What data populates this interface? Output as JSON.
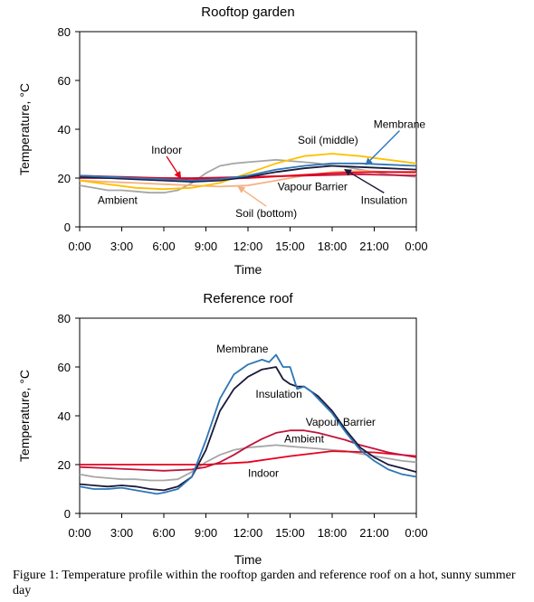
{
  "caption": "Figure 1: Temperature profile within the rooftop garden and reference roof on a hot, sunny summer day",
  "colors": {
    "ambient": "#a6a6a6",
    "indoor": "#e8001c",
    "membrane": "#2e75b6",
    "insulation": "#1a1a3a",
    "vapour_barrier": "#c0143c",
    "soil_middle": "#ffc000",
    "soil_bottom": "#f4b183"
  },
  "chart_data": [
    {
      "type": "line",
      "title": "Rooftop garden",
      "xlabel": "Time",
      "ylabel": "Temperature, °C",
      "x_ticks": [
        "0:00",
        "3:00",
        "6:00",
        "9:00",
        "12:00",
        "15:00",
        "18:00",
        "21:00",
        "0:00"
      ],
      "y_ticks": [
        0,
        20,
        40,
        60,
        80
      ],
      "xlim": [
        0,
        24
      ],
      "ylim": [
        0,
        80
      ],
      "grid": false,
      "series": [
        {
          "name": "Ambient",
          "color_key": "ambient",
          "x": [
            0,
            1,
            2,
            3,
            4,
            5,
            6,
            7,
            8,
            9,
            10,
            11,
            12,
            13,
            14,
            15,
            16,
            17,
            18,
            19,
            20,
            21,
            22,
            23,
            24
          ],
          "y": [
            17,
            16,
            15,
            15,
            14.5,
            14,
            14,
            15,
            18,
            22,
            25,
            26,
            26.5,
            27,
            27.5,
            27,
            26.5,
            26,
            25,
            24.5,
            23.5,
            22.5,
            21.5,
            21,
            20.5
          ]
        },
        {
          "name": "Soil (bottom)",
          "color_key": "soil_bottom",
          "x": [
            0,
            2,
            4,
            6,
            8,
            10,
            12,
            14,
            16,
            18,
            20,
            22,
            24
          ],
          "y": [
            19,
            18.5,
            18,
            17.5,
            17,
            16.5,
            17,
            19,
            21,
            22.5,
            23,
            22.5,
            22
          ]
        },
        {
          "name": "Soil (middle)",
          "color_key": "soil_middle",
          "x": [
            0,
            2,
            4,
            6,
            8,
            10,
            12,
            14,
            16,
            18,
            20,
            22,
            24
          ],
          "y": [
            19,
            17.5,
            16,
            15.5,
            16,
            18,
            22,
            26,
            29,
            30,
            29,
            27.5,
            26
          ]
        },
        {
          "name": "Vapour Barrier",
          "color_key": "vapour_barrier",
          "x": [
            0,
            4,
            8,
            12,
            16,
            20,
            24
          ],
          "y": [
            20,
            20,
            20,
            20.5,
            21,
            21.5,
            21
          ]
        },
        {
          "name": "Indoor",
          "color_key": "indoor",
          "x": [
            0,
            3,
            6,
            9,
            12,
            15,
            18,
            21,
            24
          ],
          "y": [
            21,
            20.5,
            20,
            19.5,
            20,
            21,
            22,
            22.5,
            22.5
          ]
        },
        {
          "name": "Insulation",
          "color_key": "insulation",
          "x": [
            0,
            2,
            4,
            6,
            8,
            10,
            12,
            14,
            16,
            18,
            20,
            22,
            24
          ],
          "y": [
            20.5,
            20,
            19.5,
            19,
            18.5,
            19,
            20.5,
            22.5,
            24,
            25,
            24.5,
            24,
            23.5
          ]
        },
        {
          "name": "Membrane",
          "color_key": "membrane",
          "x": [
            0,
            2,
            4,
            6,
            8,
            10,
            12,
            14,
            16,
            18,
            20,
            22,
            24
          ],
          "y": [
            21,
            20.5,
            20,
            19.5,
            19,
            19.5,
            21,
            23.5,
            25,
            26,
            26,
            25.5,
            25
          ]
        }
      ],
      "annotations": [
        {
          "text": "Indoor",
          "x": 6.2,
          "y": 30,
          "anchor": "middle",
          "target": [
            7.2,
            20
          ]
        },
        {
          "text": "Soil (middle)",
          "x": 17.7,
          "y": 34,
          "anchor": "middle"
        },
        {
          "text": "Membrane",
          "x": 22.8,
          "y": 40.5,
          "anchor": "middle",
          "target": [
            20.4,
            25.5
          ]
        },
        {
          "text": "Ambient",
          "x": 2.7,
          "y": 9.5,
          "anchor": "middle"
        },
        {
          "text": "Vapour Barrier",
          "x": 16.6,
          "y": 15,
          "anchor": "middle"
        },
        {
          "text": "Insulation",
          "x": 21.7,
          "y": 9.5,
          "anchor": "middle",
          "target": [
            18.9,
            23.5
          ]
        },
        {
          "text": "Soil (bottom)",
          "x": 13.3,
          "y": 4,
          "anchor": "middle",
          "target": [
            11.3,
            16.5
          ]
        }
      ]
    },
    {
      "type": "line",
      "title": "Reference roof",
      "xlabel": "Time",
      "ylabel": "Temperature, °C",
      "x_ticks": [
        "0:00",
        "3:00",
        "6:00",
        "9:00",
        "12:00",
        "15:00",
        "18:00",
        "21:00",
        "0:00"
      ],
      "y_ticks": [
        0,
        20,
        40,
        60,
        80
      ],
      "xlim": [
        0,
        24
      ],
      "ylim": [
        0,
        80
      ],
      "grid": false,
      "series": [
        {
          "name": "Ambient",
          "color_key": "ambient",
          "x": [
            0,
            1,
            2,
            3,
            4,
            5,
            6,
            7,
            8,
            9,
            10,
            11,
            12,
            13,
            14,
            15,
            16,
            17,
            18,
            19,
            20,
            21,
            22,
            23,
            24
          ],
          "y": [
            16,
            15,
            14.5,
            14,
            14,
            13.5,
            13.5,
            14,
            17,
            21,
            24,
            26,
            27,
            27.5,
            28,
            27.5,
            27,
            26.5,
            26,
            25.5,
            24.5,
            23.5,
            22.5,
            21.5,
            21
          ]
        },
        {
          "name": "Indoor",
          "color_key": "indoor",
          "x": [
            0,
            3,
            6,
            9,
            12,
            15,
            18,
            21,
            24
          ],
          "y": [
            20,
            20,
            20,
            20,
            21,
            23.5,
            25.5,
            25,
            23.5
          ]
        },
        {
          "name": "Vapour Barrier",
          "color_key": "vapour_barrier",
          "x": [
            0,
            2,
            4,
            6,
            8,
            9,
            10,
            11,
            12,
            13,
            14,
            15,
            16,
            17,
            18,
            19,
            20,
            21,
            22,
            23,
            24
          ],
          "y": [
            19,
            18.5,
            18,
            17.5,
            18,
            19,
            21,
            24,
            27.5,
            30.5,
            33,
            34,
            34,
            33,
            31.5,
            30,
            28,
            26.5,
            25,
            24,
            23
          ]
        },
        {
          "name": "Insulation",
          "color_key": "insulation",
          "x": [
            0,
            1,
            2,
            3,
            4,
            5,
            6,
            7,
            8,
            9,
            10,
            11,
            12,
            13,
            14,
            14.5,
            15,
            15.5,
            16,
            17,
            18,
            19,
            20,
            21,
            22,
            23,
            24
          ],
          "y": [
            12,
            11.5,
            11,
            11.5,
            11,
            10,
            9.5,
            11,
            15,
            26,
            42,
            51,
            56,
            59,
            60,
            55,
            53,
            52,
            52,
            48,
            42,
            34,
            27,
            23,
            20,
            18.5,
            17
          ]
        },
        {
          "name": "Membrane",
          "color_key": "membrane",
          "x": [
            0,
            1,
            2,
            3,
            4,
            5,
            5.5,
            6,
            7,
            8,
            9,
            10,
            11,
            12,
            13,
            13.5,
            14,
            14.5,
            15,
            15.5,
            16,
            16.5,
            17,
            18,
            19,
            20,
            21,
            22,
            23,
            24
          ],
          "y": [
            11,
            10,
            10,
            10.5,
            9.5,
            8.5,
            8,
            8.5,
            10,
            15,
            30,
            47,
            57,
            61,
            63,
            62,
            65,
            60,
            60,
            51,
            52,
            50,
            47,
            41,
            33,
            26,
            21.5,
            18,
            16,
            15
          ]
        }
      ],
      "annotations": [
        {
          "text": "Membrane",
          "x": 11.6,
          "y": 66,
          "anchor": "middle"
        },
        {
          "text": "Insulation",
          "x": 14.2,
          "y": 47.5,
          "anchor": "middle"
        },
        {
          "text": "Vapour Barrier",
          "x": 18.6,
          "y": 36,
          "anchor": "middle"
        },
        {
          "text": "Ambient",
          "x": 16,
          "y": 29,
          "anchor": "middle"
        },
        {
          "text": "Indoor",
          "x": 13.1,
          "y": 15,
          "anchor": "middle"
        }
      ]
    }
  ]
}
